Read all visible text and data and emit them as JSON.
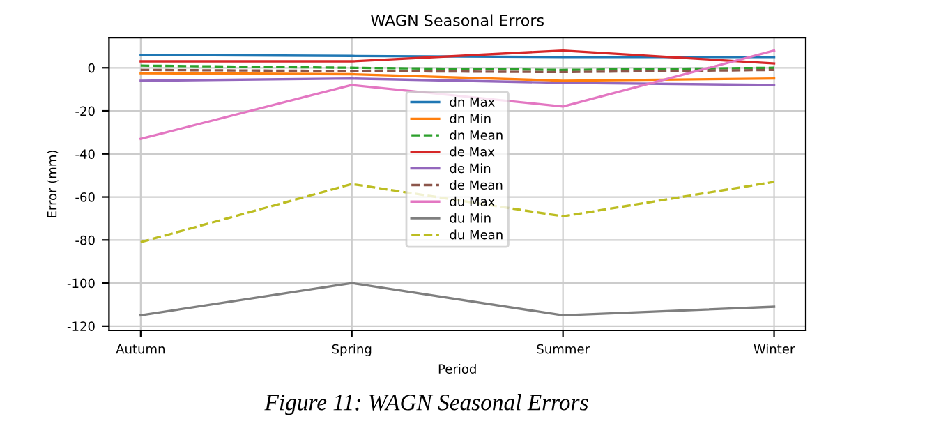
{
  "chart_data": {
    "type": "line",
    "title": "WAGN Seasonal Errors",
    "xlabel": "Period",
    "ylabel": "Error (mm)",
    "categories": [
      "Autumn",
      "Spring",
      "Summer",
      "Winter"
    ],
    "series": [
      {
        "name": "dn Max",
        "color": "#1f77b4",
        "values": [
          6,
          5.5,
          5,
          5
        ]
      },
      {
        "name": "dn Min",
        "color": "#ff7f0e",
        "values": [
          -2.5,
          -3,
          -6,
          -5
        ]
      },
      {
        "name": "dn Mean",
        "color": "#2ca02c",
        "values": [
          1,
          0,
          -1,
          0
        ],
        "line_style": "dashed"
      },
      {
        "name": "de Max",
        "color": "#d62728",
        "values": [
          3,
          3,
          8,
          2
        ]
      },
      {
        "name": "de Min",
        "color": "#9467bd",
        "values": [
          -6,
          -5,
          -7,
          -8
        ]
      },
      {
        "name": "de Mean",
        "color": "#8c564b",
        "values": [
          -1,
          -1.5,
          -2,
          -1
        ],
        "line_style": "dashed"
      },
      {
        "name": "du Max",
        "color": "#e377c2",
        "values": [
          -33,
          -8,
          -18,
          8
        ]
      },
      {
        "name": "du Min",
        "color": "#7f7f7f",
        "values": [
          -115,
          -100,
          -115,
          -111
        ]
      },
      {
        "name": "du Mean",
        "color": "#bcbd22",
        "values": [
          -81,
          -54,
          -69,
          -53
        ],
        "line_style": "dashed"
      }
    ],
    "ylim": [
      -122,
      14
    ],
    "yticks": [
      -120,
      -100,
      -80,
      -60,
      -40,
      -20,
      0
    ],
    "grid": true,
    "legend": "center",
    "annotations": [
      "Figure 11: WAGN Seasonal Errors"
    ]
  }
}
